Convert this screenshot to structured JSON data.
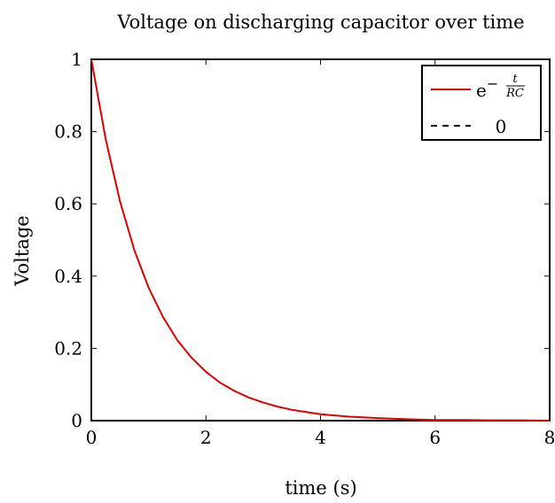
{
  "chart_data": {
    "type": "line",
    "title": "Voltage on discharging capacitor over time",
    "xlabel": "time (s)",
    "ylabel": "Voltage",
    "xlim": [
      0,
      8
    ],
    "ylim": [
      0,
      1
    ],
    "xticks": [
      0,
      2,
      4,
      6,
      8
    ],
    "xtick_labels": [
      "0",
      "2",
      "4",
      "6",
      "8"
    ],
    "yticks": [
      0,
      0.2,
      0.4,
      0.6,
      0.8,
      1
    ],
    "ytick_labels": [
      "0",
      "0.2",
      "0.4",
      "0.6",
      "0.8",
      "1"
    ],
    "grid": false,
    "legend_position": "top-right",
    "series": [
      {
        "name": "e^(−t/RC)",
        "color": "#e00000",
        "style": "solid",
        "x": [
          0,
          0.25,
          0.5,
          0.75,
          1,
          1.25,
          1.5,
          1.75,
          2,
          2.25,
          2.5,
          2.75,
          3,
          3.25,
          3.5,
          3.75,
          4,
          4.5,
          5,
          5.5,
          6,
          6.5,
          7,
          7.5,
          8
        ],
        "y": [
          1,
          0.779,
          0.607,
          0.472,
          0.368,
          0.287,
          0.223,
          0.174,
          0.135,
          0.105,
          0.082,
          0.064,
          0.05,
          0.039,
          0.03,
          0.024,
          0.018,
          0.011,
          0.007,
          0.004,
          0.002,
          0.002,
          0.001,
          0.001,
          0
        ]
      },
      {
        "name": "0",
        "color": "#000000",
        "style": "dashed",
        "x": [
          0,
          5
        ],
        "y": [
          0,
          0
        ]
      }
    ],
    "legend": {
      "entries": [
        {
          "base": "e",
          "sup_prefix": "−",
          "frac_num": "t",
          "frac_den": "RC"
        },
        {
          "label": "0"
        }
      ]
    }
  }
}
